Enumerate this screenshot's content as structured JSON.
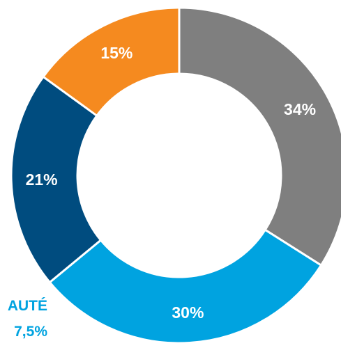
{
  "chart_data": {
    "type": "pie",
    "variant": "donut",
    "slices": [
      {
        "label": "34%",
        "value": 34,
        "color": "#7f7f7f"
      },
      {
        "label": "30%",
        "value": 30,
        "color": "#00a3e0"
      },
      {
        "label": "21%",
        "value": 21,
        "color": "#004c7f"
      },
      {
        "label": "15%",
        "value": 15,
        "color": "#f58a1f"
      }
    ],
    "start_angle_deg": 0,
    "direction": "clockwise",
    "side_annotation": {
      "lines": [
        "AUTÉ",
        "7,5%"
      ],
      "color": "#00a3e0"
    }
  }
}
